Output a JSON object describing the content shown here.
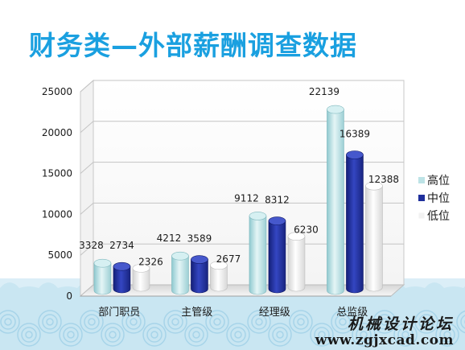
{
  "slide": {
    "title": "财务类—外部薪酬调查数据"
  },
  "watermark": {
    "text_cn": "机械设计论坛",
    "url": "www.zgjxcad.com"
  },
  "colors": {
    "high": "#bde3e6",
    "mid": "#1f2f9c",
    "low": "#f2f2f2",
    "title": "#1aa0e0",
    "wave": "#b6dcec"
  },
  "chart_data": {
    "type": "bar",
    "categories": [
      "部门职员",
      "主管级",
      "经理级",
      "总监级"
    ],
    "series": [
      {
        "name": "高位",
        "values": [
          3328,
          4212,
          9112,
          22139
        ]
      },
      {
        "name": "中位",
        "values": [
          2734,
          3589,
          8312,
          16389
        ]
      },
      {
        "name": "低位",
        "values": [
          2326,
          2677,
          6230,
          12388
        ]
      }
    ],
    "yticks": [
      0,
      5000,
      10000,
      15000,
      20000,
      25000
    ],
    "ylim": [
      0,
      25000
    ],
    "grid": true,
    "legend": "right",
    "style": "3d-cylinder"
  }
}
